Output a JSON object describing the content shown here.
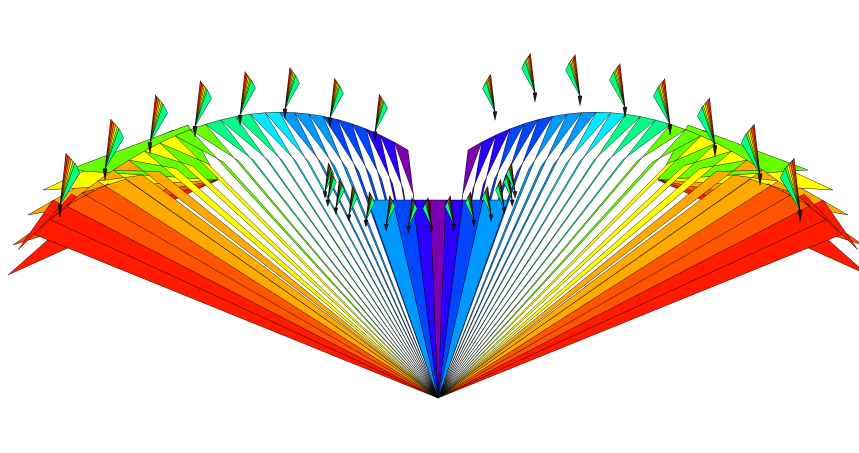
{
  "figure": {
    "background": "#ffffff",
    "outline_color": "#000000",
    "palette": [
      "#7a00b0",
      "#2a00ff",
      "#0047ff",
      "#0099ff",
      "#00eaff",
      "#00ff88",
      "#66ff00",
      "#ffff00",
      "#ffaa00",
      "#ff5500",
      "#ff1a00"
    ]
  }
}
